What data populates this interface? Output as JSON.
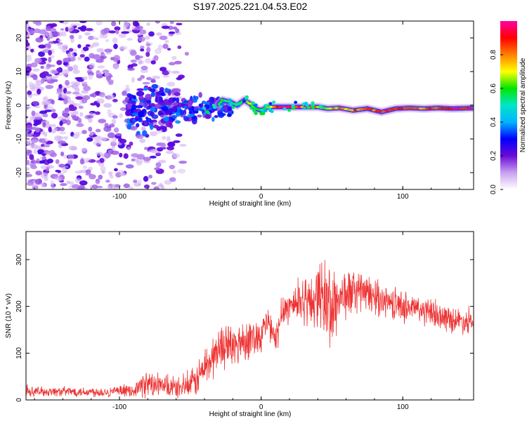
{
  "title": "S197.2025.221.04.53.E02",
  "chart_data": [
    {
      "type": "heatmap",
      "name": "spectrogram",
      "xlabel": "Height of straight line (km)",
      "ylabel": "Frequency (Hz)",
      "xlim": [
        -166,
        150
      ],
      "ylim": [
        -25,
        25
      ],
      "xticks": [
        -100,
        0,
        100
      ],
      "yticks": [
        -20,
        -10,
        0,
        10,
        20
      ],
      "colorbar": {
        "label": "Normalized spectral amplitude",
        "range": [
          0,
          1
        ],
        "ticks": [
          0.0,
          0.2,
          0.4,
          0.6,
          0.8
        ],
        "tick_labels": [
          "0.0",
          "0.2",
          "0.4",
          "0.6",
          "0.8"
        ],
        "colormap": [
          "#ffffff",
          "#c8a0f0",
          "#6a0ad8",
          "#0000ff",
          "#00b4ff",
          "#00e6c8",
          "#00e600",
          "#ffff00",
          "#ff8000",
          "#ff0000",
          "#ff00a0"
        ]
      },
      "noise_region_xlim": [
        -166,
        -55
      ],
      "trace": [
        {
          "x": -85,
          "y": 0.0,
          "a": 0.2
        },
        {
          "x": -75,
          "y": -1.0,
          "a": 0.25
        },
        {
          "x": -65,
          "y": -0.5,
          "a": 0.3
        },
        {
          "x": -55,
          "y": 0.0,
          "a": 0.35
        },
        {
          "x": -45,
          "y": -1.5,
          "a": 0.3
        },
        {
          "x": -38,
          "y": -2.0,
          "a": 0.4
        },
        {
          "x": -32,
          "y": -0.5,
          "a": 0.45
        },
        {
          "x": -27,
          "y": 1.5,
          "a": 0.4
        },
        {
          "x": -22,
          "y": 1.0,
          "a": 0.55
        },
        {
          "x": -17,
          "y": 0.0,
          "a": 0.6
        },
        {
          "x": -12,
          "y": 1.5,
          "a": 0.65
        },
        {
          "x": -8,
          "y": 0.5,
          "a": 0.6
        },
        {
          "x": -4,
          "y": -1.0,
          "a": 0.55
        },
        {
          "x": 0,
          "y": -1.5,
          "a": 0.6
        },
        {
          "x": 5,
          "y": -0.5,
          "a": 0.7
        },
        {
          "x": 10,
          "y": -0.5,
          "a": 0.9
        },
        {
          "x": 20,
          "y": -0.5,
          "a": 0.92
        },
        {
          "x": 30,
          "y": -0.5,
          "a": 0.85
        },
        {
          "x": 40,
          "y": -0.5,
          "a": 0.75
        },
        {
          "x": 47,
          "y": -1.0,
          "a": 0.65
        },
        {
          "x": 55,
          "y": -0.8,
          "a": 0.8
        },
        {
          "x": 65,
          "y": -1.5,
          "a": 0.85
        },
        {
          "x": 75,
          "y": -1.0,
          "a": 0.85
        },
        {
          "x": 85,
          "y": -2.0,
          "a": 0.9
        },
        {
          "x": 95,
          "y": -1.0,
          "a": 0.85
        },
        {
          "x": 105,
          "y": -0.8,
          "a": 0.95
        },
        {
          "x": 115,
          "y": -1.0,
          "a": 0.8
        },
        {
          "x": 125,
          "y": -0.8,
          "a": 0.85
        },
        {
          "x": 135,
          "y": -1.0,
          "a": 0.95
        },
        {
          "x": 150,
          "y": -0.8,
          "a": 0.95
        }
      ]
    },
    {
      "type": "line",
      "name": "snr",
      "xlabel": "Height of straight line (km)",
      "ylabel": "SNR (10 * v/v)",
      "xlim": [
        -166,
        150
      ],
      "ylim": [
        0,
        360
      ],
      "xticks": [
        -100,
        0,
        100
      ],
      "yticks": [
        0,
        100,
        200,
        300
      ],
      "color": "#ee3333",
      "series": [
        {
          "name": "SNR",
          "x": [
            -166,
            -150,
            -130,
            -110,
            -90,
            -82,
            -70,
            -60,
            -50,
            -45,
            -40,
            -35,
            -30,
            -25,
            -20,
            -15,
            -10,
            -5,
            0,
            5,
            10,
            15,
            20,
            25,
            30,
            35,
            40,
            45,
            50,
            55,
            60,
            65,
            70,
            75,
            80,
            90,
            100,
            110,
            120,
            130,
            140,
            150
          ],
          "y": [
            18,
            18,
            18,
            17,
            20,
            35,
            28,
            25,
            30,
            45,
            70,
            85,
            110,
            120,
            110,
            125,
            130,
            135,
            140,
            170,
            120,
            195,
            200,
            210,
            215,
            205,
            230,
            215,
            190,
            220,
            225,
            230,
            235,
            225,
            220,
            210,
            200,
            195,
            185,
            175,
            170,
            165
          ]
        }
      ],
      "noise_amplitude": [
        {
          "x": -166,
          "a": 12
        },
        {
          "x": -90,
          "a": 14
        },
        {
          "x": -82,
          "a": 35
        },
        {
          "x": -55,
          "a": 25
        },
        {
          "x": -40,
          "a": 55
        },
        {
          "x": -20,
          "a": 60
        },
        {
          "x": 0,
          "a": 45
        },
        {
          "x": 20,
          "a": 45
        },
        {
          "x": 40,
          "a": 80
        },
        {
          "x": 48,
          "a": 130
        },
        {
          "x": 55,
          "a": 70
        },
        {
          "x": 80,
          "a": 45
        },
        {
          "x": 150,
          "a": 30
        }
      ]
    }
  ]
}
